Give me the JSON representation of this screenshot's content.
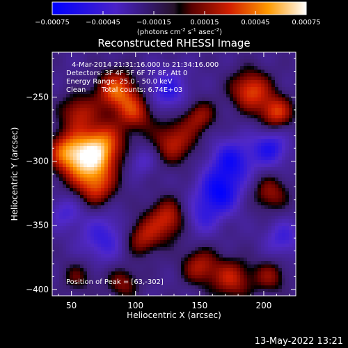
{
  "chart_data": {
    "type": "heatmap",
    "title": "Reconstructed RHESSI Image",
    "xlabel": "Heliocentric X (arcsec)",
    "ylabel": "Heliocentric Y (arcsec)",
    "xlim": [
      35,
      225
    ],
    "ylim": [
      -405,
      -215
    ],
    "x_ticks": [
      50,
      100,
      150,
      200
    ],
    "y_ticks": [
      -400,
      -350,
      -300,
      -250
    ],
    "colorbar": {
      "range": [
        -0.00075,
        0.00075
      ],
      "ticks": [
        "-0.00075",
        "-0.00045",
        "-0.00015",
        "0.00015",
        "0.00045",
        "0.00075"
      ],
      "tick_values": [
        -0.00075,
        -0.00045,
        -0.00015,
        0.00015,
        0.00045,
        0.00075
      ],
      "unit_main": "(photons cm",
      "unit_exp1": "-2",
      "unit_mid": " s",
      "unit_exp2": "-1",
      "unit_mid2": " asec",
      "unit_exp3": "-2",
      "unit_end": ")"
    },
    "annotations": {
      "time": "4-Mar-2014 21:31:16.000 to 21:34:16.000",
      "detectors": "Detectors: 3F 4F 5F 6F 7F 8F, Att 0",
      "energy": "Energy Range: 25.0 - 50.0 keV",
      "clean": "Clean",
      "counts": "Total counts: 6.74E+03",
      "peak": "Position of Peak = [63,-302]"
    },
    "peak": [
      63,
      -302
    ],
    "blobs": [
      {
        "x": 63,
        "y": -300,
        "v": 1.0,
        "s": 14
      },
      {
        "x": 75,
        "y": -285,
        "v": 0.55,
        "s": 12
      },
      {
        "x": 45,
        "y": -292,
        "v": 0.55,
        "s": 10
      },
      {
        "x": 85,
        "y": -245,
        "v": 0.75,
        "s": 11
      },
      {
        "x": 100,
        "y": -262,
        "v": 0.55,
        "s": 10
      },
      {
        "x": 55,
        "y": -262,
        "v": 0.5,
        "s": 10
      },
      {
        "x": 130,
        "y": -285,
        "v": 0.55,
        "s": 12
      },
      {
        "x": 150,
        "y": -265,
        "v": 0.45,
        "s": 9
      },
      {
        "x": 125,
        "y": -345,
        "v": 0.6,
        "s": 11
      },
      {
        "x": 105,
        "y": -360,
        "v": 0.5,
        "s": 10
      },
      {
        "x": 190,
        "y": -245,
        "v": 0.7,
        "s": 11
      },
      {
        "x": 210,
        "y": -262,
        "v": 0.65,
        "s": 9
      },
      {
        "x": 205,
        "y": -325,
        "v": 0.45,
        "s": 10
      },
      {
        "x": 175,
        "y": -392,
        "v": 0.55,
        "s": 11
      },
      {
        "x": 150,
        "y": -382,
        "v": 0.5,
        "s": 10
      },
      {
        "x": 205,
        "y": -390,
        "v": 0.4,
        "s": 9
      },
      {
        "x": 90,
        "y": -395,
        "v": 0.4,
        "s": 9
      },
      {
        "x": 55,
        "y": -390,
        "v": 0.3,
        "s": 9
      },
      {
        "x": 70,
        "y": -322,
        "v": 0.45,
        "s": 10
      },
      {
        "x": 175,
        "y": -300,
        "v": -0.6,
        "s": 12
      },
      {
        "x": 165,
        "y": -325,
        "v": -0.7,
        "s": 12
      },
      {
        "x": 205,
        "y": -290,
        "v": -0.55,
        "s": 10
      },
      {
        "x": 125,
        "y": -245,
        "v": -0.5,
        "s": 11
      },
      {
        "x": 75,
        "y": -360,
        "v": -0.45,
        "s": 13
      },
      {
        "x": 215,
        "y": -360,
        "v": -0.4,
        "s": 10
      },
      {
        "x": 150,
        "y": -345,
        "v": -0.35,
        "s": 10
      },
      {
        "x": 45,
        "y": -340,
        "v": -0.35,
        "s": 9
      },
      {
        "x": 105,
        "y": -300,
        "v": -0.3,
        "s": 8
      }
    ]
  }
}
